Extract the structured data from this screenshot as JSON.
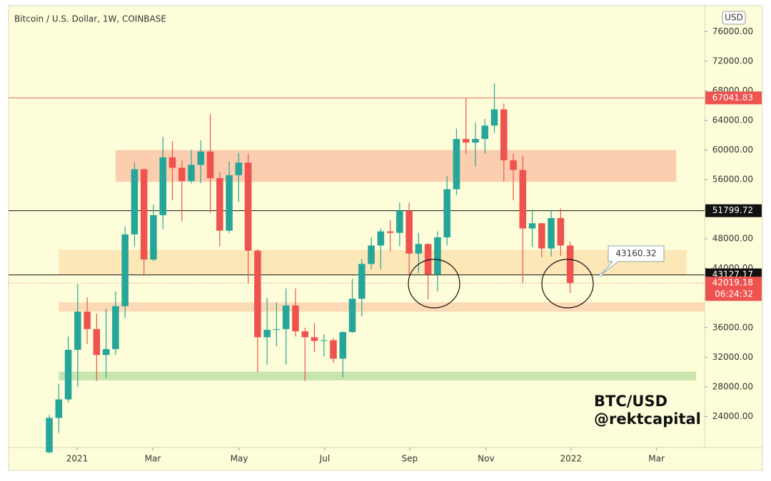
{
  "chart_data": {
    "type": "candlestick",
    "title": "Bitcoin / U.S. Dollar, 1W, COINBASE",
    "axis_unit": "USD",
    "up_color": "#26a69a",
    "down_color": "#ef5350",
    "open": [
      19150,
      23800,
      26300,
      33000,
      38150,
      35800,
      32300,
      33100,
      38900,
      48600,
      57400,
      45200,
      51200,
      59000,
      57600,
      55800,
      58000,
      59800,
      56200,
      49100,
      56600,
      58300,
      46400,
      34700,
      35700,
      35800,
      39000,
      35500,
      34700,
      34200,
      34300,
      31800,
      35400,
      39900,
      44600,
      47100,
      49000,
      48800,
      51800,
      46000,
      47300,
      43200,
      48200,
      54700,
      61500,
      61000,
      61500,
      63300,
      65500,
      58600,
      57300,
      49400,
      50100,
      46700,
      50800,
      47100
    ],
    "high": [
      24200,
      28400,
      34800,
      41900,
      40100,
      37900,
      38600,
      40900,
      49700,
      58350,
      57500,
      52600,
      61800,
      61200,
      58600,
      60000,
      61300,
      64850,
      57000,
      58500,
      59600,
      59500,
      46600,
      40000,
      39400,
      41300,
      41300,
      36000,
      36600,
      35100,
      34600,
      35500,
      42600,
      45300,
      48200,
      49400,
      50500,
      52900,
      52900,
      48800,
      47400,
      49000,
      56500,
      62900,
      67000,
      63700,
      64200,
      69000,
      66300,
      59500,
      59200,
      51900,
      50100,
      51900,
      52100,
      47600
    ],
    "low": [
      19000,
      21800,
      25900,
      28000,
      33800,
      28800,
      29200,
      32300,
      37300,
      47000,
      43000,
      45000,
      49300,
      53200,
      50400,
      55500,
      55500,
      51500,
      47000,
      48800,
      53000,
      42000,
      30000,
      31000,
      33500,
      31000,
      34800,
      28800,
      32700,
      32100,
      31200,
      29300,
      35300,
      37500,
      43900,
      43900,
      46300,
      47000,
      43000,
      43400,
      39800,
      40900,
      47100,
      53900,
      59500,
      57800,
      59500,
      62300,
      55700,
      53200,
      42000,
      46900,
      45500,
      45600,
      45700,
      40700
    ],
    "close": [
      23800,
      26300,
      33000,
      38150,
      35800,
      32300,
      33100,
      38900,
      48600,
      57400,
      45200,
      51200,
      59000,
      57600,
      55800,
      58000,
      59800,
      56200,
      49100,
      56600,
      58300,
      46400,
      34700,
      35700,
      35800,
      39000,
      35500,
      34700,
      34200,
      34300,
      31800,
      35400,
      39900,
      44600,
      47100,
      49000,
      48800,
      51800,
      46000,
      47300,
      43200,
      48200,
      54700,
      61500,
      61000,
      61500,
      63300,
      65500,
      58600,
      57300,
      49400,
      50100,
      46700,
      50800,
      47100,
      42019.18
    ],
    "xlim": [
      -4.3,
      69.2
    ],
    "xticks": [
      {
        "value": 2.94,
        "label": "2021"
      },
      {
        "value": 10.93,
        "label": "Mar"
      },
      {
        "value": 20.05,
        "label": "May"
      },
      {
        "value": 29.09,
        "label": "Jul"
      },
      {
        "value": 38.06,
        "label": "Sep"
      },
      {
        "value": 46.12,
        "label": "Nov"
      },
      {
        "value": 55.09,
        "label": "2022"
      },
      {
        "value": 64.13,
        "label": "Mar"
      }
    ],
    "ylim": [
      19800,
      79500
    ],
    "yticks": [
      {
        "value": 24000,
        "label": "24000.00"
      },
      {
        "value": 28000,
        "label": "28000.00"
      },
      {
        "value": 32000,
        "label": "32000.00"
      },
      {
        "value": 36000,
        "label": "36000.00"
      },
      {
        "value": 40000,
        "label": "40000.00"
      },
      {
        "value": 44000,
        "label": "44000.00"
      },
      {
        "value": 48000,
        "label": "48000.00"
      },
      {
        "value": 52000,
        "label": "52000.00"
      },
      {
        "value": 56000,
        "label": "56000.00"
      },
      {
        "value": 60000,
        "label": "60000.00"
      },
      {
        "value": 64000,
        "label": "64000.00"
      },
      {
        "value": 68000,
        "label": "68000.00"
      },
      {
        "value": 72000,
        "label": "72000.00"
      },
      {
        "value": 76000,
        "label": "76000.00"
      }
    ],
    "zones": [
      {
        "from": 55700,
        "to": 60000,
        "start": 7.0,
        "end": 66.2,
        "color": "#f9c6a6"
      },
      {
        "from": 43130,
        "to": 46500,
        "start": 1.0,
        "end": 67.3,
        "color": "#fbe3b0"
      },
      {
        "from": 38160,
        "to": 39410,
        "start": 1.0,
        "end": 69.2,
        "color": "#fbd3ae"
      },
      {
        "from": 28880,
        "to": 30040,
        "start": 1.0,
        "end": 68.3,
        "color": "#bde0a3"
      }
    ],
    "levels": [
      {
        "value": 67041.83,
        "color": "#ef5350",
        "line": "#e07060"
      },
      {
        "value": 51799.72,
        "color": "#111111",
        "line": "#111111"
      },
      {
        "value": 43127.17,
        "color": "#111111",
        "line": "#111111"
      }
    ],
    "current_price": 42019.18,
    "countdown": "06:24:32",
    "callout": 43160.32,
    "watermark": [
      "BTC/USD",
      "@rektcapital"
    ]
  }
}
